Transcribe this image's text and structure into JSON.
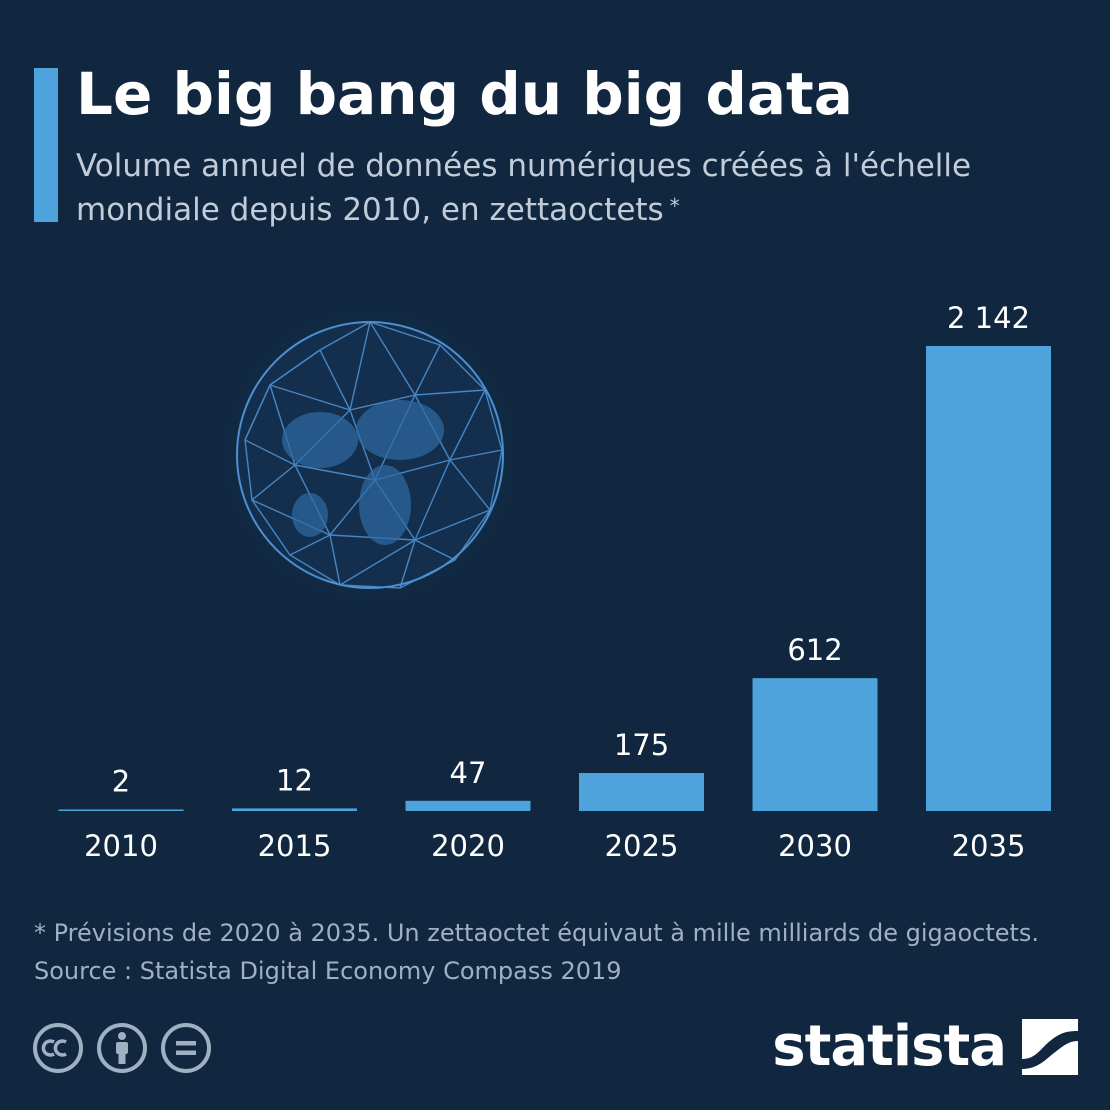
{
  "header": {
    "title": "Le big bang du big data",
    "subtitle": "Volume annuel de données numériques créées à l'échelle mondiale depuis 2010, en zettaoctets",
    "subtitle_marker": "*"
  },
  "chart_data": {
    "type": "bar",
    "categories": [
      "2010",
      "2015",
      "2020",
      "2025",
      "2030",
      "2035"
    ],
    "values": [
      2,
      12,
      47,
      175,
      612,
      2142
    ],
    "value_labels": [
      "2",
      "12",
      "47",
      "175",
      "612",
      "2 142"
    ],
    "title": "Le big bang du big data",
    "subtitle": "Volume annuel de données numériques créées à l'échelle mondiale depuis 2010, en zettaoctets",
    "xlabel": "",
    "ylabel": "",
    "ylim": [
      0,
      2142
    ],
    "grid": false,
    "legend": "none",
    "bar_color": "#4ea3dc"
  },
  "footer": {
    "note": "* Prévisions de 2020 à 2035. Un zettaoctet équivaut à mille milliards de gigaoctets.",
    "source": "Source : Statista Digital Economy Compass 2019",
    "brand": "statista"
  },
  "colors": {
    "background": "#10273f",
    "accent": "#4ea3dc",
    "text": "#ffffff",
    "muted_text": "#9fb0c2"
  },
  "icons": [
    "creative-commons-icon",
    "attribution-icon",
    "no-derivatives-icon",
    "statista-logo-icon",
    "globe-network-icon"
  ]
}
